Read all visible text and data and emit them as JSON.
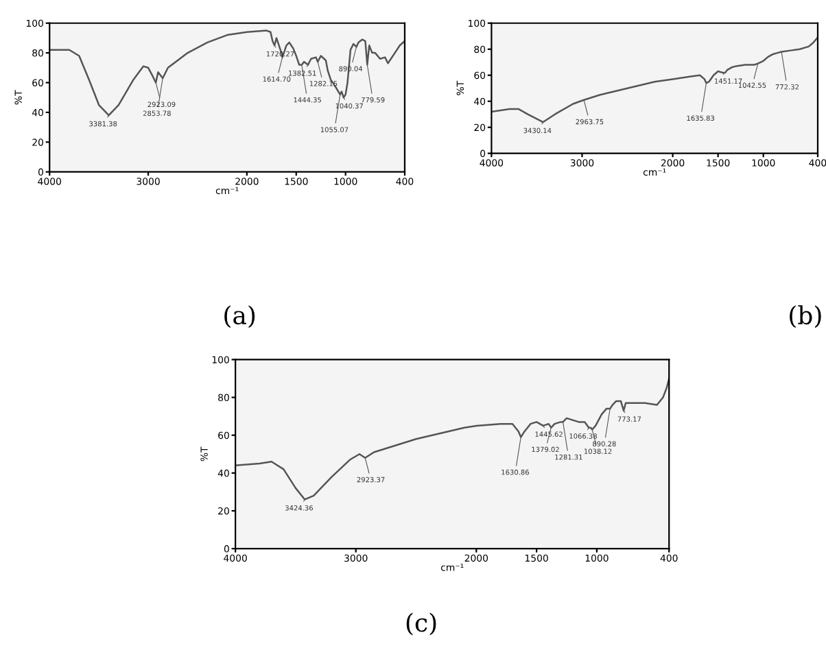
{
  "chart_data": [
    {
      "type": "line",
      "title": "(a)",
      "xlabel": "cm⁻¹",
      "ylabel": "%T",
      "xlim": [
        4000,
        400
      ],
      "xticks": [
        4000,
        3000,
        2000,
        1500,
        1000,
        400
      ],
      "ylim": [
        0,
        100
      ],
      "yticks": [
        0,
        20,
        40,
        60,
        80,
        100
      ],
      "grid": false,
      "legend": false,
      "x": [
        4000,
        3800,
        3700,
        3600,
        3500,
        3400,
        3300,
        3150,
        3050,
        3000,
        2960,
        2923,
        2900,
        2853,
        2800,
        2600,
        2400,
        2200,
        2000,
        1800,
        1760,
        1740,
        1720,
        1700,
        1650,
        1640,
        1600,
        1570,
        1530,
        1500,
        1470,
        1444,
        1420,
        1380,
        1350,
        1300,
        1282,
        1250,
        1200,
        1180,
        1150,
        1100,
        1055,
        1040,
        1020,
        1000,
        980,
        950,
        920,
        890,
        870,
        830,
        800,
        780,
        760,
        730,
        700,
        650,
        600,
        570,
        500,
        450,
        400
      ],
      "series": [
        {
          "color": "#555555",
          "values": [
            82,
            82,
            78,
            62,
            45,
            38,
            45,
            62,
            71,
            70,
            65,
            60,
            67,
            63,
            70,
            80,
            87,
            92,
            94,
            95,
            94,
            88,
            85,
            90,
            80,
            77,
            85,
            87,
            83,
            78,
            72,
            72,
            74,
            72,
            76,
            77,
            74,
            78,
            75,
            68,
            62,
            57,
            52,
            54,
            50,
            52,
            60,
            82,
            86,
            84,
            87,
            89,
            88,
            72,
            85,
            80,
            80,
            76,
            77,
            73,
            80,
            85,
            88
          ]
        }
      ],
      "annotations": [
        {
          "text": "3381.38",
          "x": 3400,
          "y": 38
        },
        {
          "text": "2923.09",
          "x": 2923,
          "y": 60
        },
        {
          "text": "2853.78",
          "x": 2853,
          "y": 63
        },
        {
          "text": "1720.27",
          "x": 1720,
          "y": 85
        },
        {
          "text": "1614.70",
          "x": 1640,
          "y": 77
        },
        {
          "text": "1444.35",
          "x": 1444,
          "y": 72
        },
        {
          "text": "1382.51",
          "x": 1380,
          "y": 72
        },
        {
          "text": "1282.15",
          "x": 1282,
          "y": 74
        },
        {
          "text": "1055.07",
          "x": 1055,
          "y": 52
        },
        {
          "text": "1040.37",
          "x": 1020,
          "y": 50
        },
        {
          "text": "890.04",
          "x": 890,
          "y": 84
        },
        {
          "text": "779.59",
          "x": 780,
          "y": 72
        }
      ]
    },
    {
      "type": "line",
      "title": "(b)",
      "xlabel": "cm⁻¹",
      "ylabel": "%T",
      "xlim": [
        4000,
        400
      ],
      "xticks": [
        4000,
        3000,
        2000,
        1500,
        1000,
        400
      ],
      "ylim": [
        0,
        100
      ],
      "yticks": [
        0,
        20,
        40,
        60,
        80,
        100
      ],
      "grid": false,
      "legend": false,
      "x": [
        4000,
        3800,
        3700,
        3600,
        3430,
        3300,
        3100,
        2980,
        2800,
        2500,
        2200,
        2000,
        1800,
        1700,
        1650,
        1630,
        1600,
        1550,
        1500,
        1450,
        1420,
        1400,
        1350,
        1300,
        1200,
        1100,
        1060,
        1000,
        950,
        900,
        850,
        800,
        700,
        600,
        500,
        450,
        400
      ],
      "series": [
        {
          "color": "#555555",
          "values": [
            32,
            34,
            34,
            30,
            24,
            30,
            38,
            41,
            45,
            50,
            55,
            57,
            59,
            60,
            57,
            54,
            55,
            60,
            63,
            62,
            62,
            64,
            66,
            67,
            68,
            68,
            69,
            71,
            74,
            76,
            77,
            78,
            79,
            80,
            82,
            85,
            89
          ]
        }
      ],
      "annotations": [
        {
          "text": "3430.14",
          "x": 3430,
          "y": 24
        },
        {
          "text": "2963.75",
          "x": 2980,
          "y": 41
        },
        {
          "text": "1635.83",
          "x": 1630,
          "y": 54
        },
        {
          "text": "1451.17",
          "x": 1450,
          "y": 62
        },
        {
          "text": "1042.55",
          "x": 1060,
          "y": 69
        },
        {
          "text": "772.32",
          "x": 800,
          "y": 78
        }
      ]
    },
    {
      "type": "line",
      "title": "(c)",
      "xlabel": "cm⁻¹",
      "ylabel": "%T",
      "xlim": [
        4000,
        400
      ],
      "xticks": [
        4000,
        3000,
        2000,
        1500,
        1000,
        400
      ],
      "ylim": [
        0,
        100
      ],
      "yticks": [
        0,
        20,
        40,
        60,
        80,
        100
      ],
      "grid": false,
      "legend": false,
      "x": [
        4000,
        3800,
        3700,
        3600,
        3500,
        3424,
        3350,
        3200,
        3050,
        2970,
        2923,
        2850,
        2700,
        2500,
        2300,
        2100,
        2000,
        1800,
        1700,
        1650,
        1630,
        1600,
        1550,
        1500,
        1445,
        1400,
        1379,
        1350,
        1300,
        1281,
        1250,
        1200,
        1150,
        1100,
        1066,
        1050,
        1038,
        1010,
        960,
        920,
        890,
        870,
        840,
        800,
        777,
        760,
        700,
        600,
        500,
        450,
        420,
        400
      ],
      "series": [
        {
          "color": "#555555",
          "values": [
            44,
            45,
            46,
            42,
            32,
            26,
            28,
            38,
            47,
            50,
            48,
            51,
            54,
            58,
            61,
            64,
            65,
            66,
            66,
            62,
            59,
            62,
            66,
            67,
            65,
            66,
            64,
            66,
            67,
            67,
            69,
            68,
            67,
            67,
            64,
            64,
            63,
            65,
            71,
            74,
            74,
            76,
            78,
            78,
            73,
            77,
            77,
            77,
            76,
            80,
            85,
            90
          ]
        }
      ],
      "annotations": [
        {
          "text": "3424.36",
          "x": 3424,
          "y": 26
        },
        {
          "text": "2923.37",
          "x": 2923,
          "y": 48
        },
        {
          "text": "1630.86",
          "x": 1630,
          "y": 59
        },
        {
          "text": "1445.62",
          "x": 1445,
          "y": 65
        },
        {
          "text": "1379.02",
          "x": 1379,
          "y": 64
        },
        {
          "text": "1281.31",
          "x": 1281,
          "y": 67
        },
        {
          "text": "1066.38",
          "x": 1066,
          "y": 64
        },
        {
          "text": "1038.12",
          "x": 1038,
          "y": 63
        },
        {
          "text": "890.28",
          "x": 890,
          "y": 74
        },
        {
          "text": "773.17",
          "x": 777,
          "y": 73
        }
      ]
    }
  ]
}
